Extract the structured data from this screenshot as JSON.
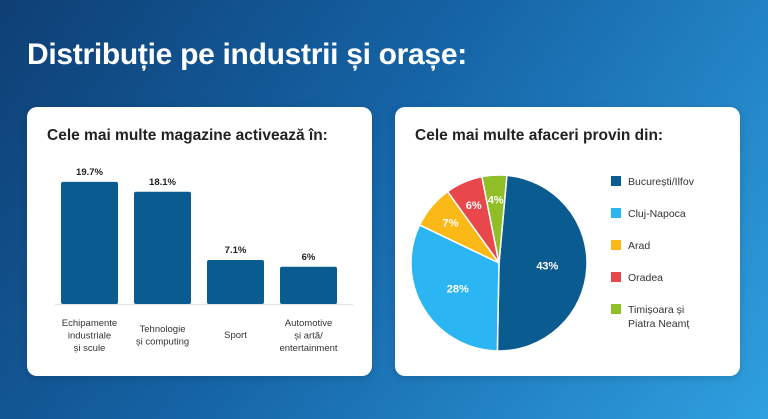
{
  "page": {
    "title": "Distribuție pe industrii și orașe:"
  },
  "chart_data": [
    {
      "type": "bar",
      "title": "Cele mai multe magazine activează în:",
      "categories": [
        [
          "Echipamente",
          "industriale",
          "și scule"
        ],
        [
          "Tehnologie",
          "și computing"
        ],
        [
          "Sport"
        ],
        [
          "Automotive",
          "și artă/",
          "entertainment"
        ]
      ],
      "values": [
        19.7,
        18.1,
        7.1,
        6
      ],
      "value_labels": [
        "19.7%",
        "18.1%",
        "7.1%",
        "6%"
      ],
      "ylim": [
        0,
        20
      ],
      "color": "#0a5b8f",
      "grid": false
    },
    {
      "type": "pie",
      "title": "Cele mai multe afaceri provin din:",
      "labels": [
        "București/Ilfov",
        "Cluj-Napoca",
        "Arad",
        "Oradea",
        "Timișoara și Piatra Neamț"
      ],
      "values": [
        43,
        28,
        7,
        6,
        4
      ],
      "value_labels": [
        "43%",
        "28%",
        "7%",
        "6%",
        "4%"
      ],
      "colors": [
        "#0a5b8f",
        "#2bb5f3",
        "#fbb917",
        "#e8474b",
        "#8fbe26"
      ],
      "legend": "right"
    }
  ]
}
